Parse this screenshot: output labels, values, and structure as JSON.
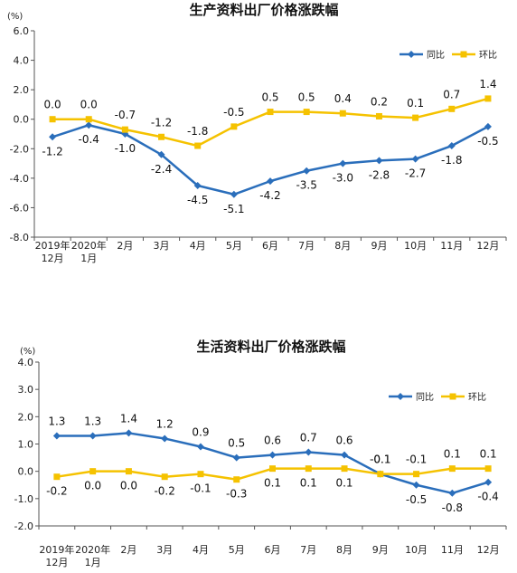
{
  "colors": {
    "tongbi": "#2a6ebb",
    "huanbi": "#f5c200",
    "axis": "#555555"
  },
  "chart_data": [
    {
      "type": "line",
      "title": "生产资料出厂价格涨跌幅",
      "unit": "(%)",
      "categories": [
        [
          "2019年",
          "12月"
        ],
        [
          "2020年",
          "1月"
        ],
        [
          "2月"
        ],
        [
          "3月"
        ],
        [
          "4月"
        ],
        [
          "5月"
        ],
        [
          "6月"
        ],
        [
          "7月"
        ],
        [
          "8月"
        ],
        [
          "9月"
        ],
        [
          "10月"
        ],
        [
          "11月"
        ],
        [
          "12月"
        ]
      ],
      "ylim": [
        -8,
        6
      ],
      "yticks": [
        "6.0",
        "4.0",
        "2.0",
        "0.0",
        "-2.0",
        "-4.0",
        "-6.0",
        "-8.0"
      ],
      "legend_position": "top-right",
      "grid": false,
      "series": [
        {
          "name": "同比",
          "values": [
            -1.2,
            -0.4,
            -1.0,
            -2.4,
            -4.5,
            -5.1,
            -4.2,
            -3.5,
            -3.0,
            -2.8,
            -2.7,
            -1.8,
            -0.5
          ],
          "labels": [
            "-1.2",
            "-0.4",
            "-1.0",
            "-2.4",
            "-4.5",
            "-5.1",
            "-4.2",
            "-3.5",
            "-3.0",
            "-2.8",
            "-2.7",
            "-1.8",
            "-0.5"
          ]
        },
        {
          "name": "环比",
          "values": [
            0.0,
            0.0,
            -0.7,
            -1.2,
            -1.8,
            -0.5,
            0.5,
            0.5,
            0.4,
            0.2,
            0.1,
            0.7,
            1.4
          ],
          "labels": [
            "0.0",
            "0.0",
            "-0.7",
            "-1.2",
            "-1.8",
            "-0.5",
            "0.5",
            "0.5",
            "0.4",
            "0.2",
            "0.1",
            "0.7",
            "1.4"
          ]
        }
      ]
    },
    {
      "type": "line",
      "title": "生活资料出厂价格涨跌幅",
      "unit": "(%)",
      "categories": [
        [
          "2019年",
          "12月"
        ],
        [
          "2020年",
          "1月"
        ],
        [
          "2月"
        ],
        [
          "3月"
        ],
        [
          "4月"
        ],
        [
          "5月"
        ],
        [
          "6月"
        ],
        [
          "7月"
        ],
        [
          "8月"
        ],
        [
          "9月"
        ],
        [
          "10月"
        ],
        [
          "11月"
        ],
        [
          "12月"
        ]
      ],
      "ylim": [
        -2,
        4
      ],
      "yticks": [
        "4.0",
        "3.0",
        "2.0",
        "1.0",
        "0.0",
        "-1.0",
        "-2.0"
      ],
      "legend_position": "top-right",
      "grid": false,
      "series": [
        {
          "name": "同比",
          "values": [
            1.3,
            1.3,
            1.4,
            1.2,
            0.9,
            0.5,
            0.6,
            0.7,
            0.6,
            -0.1,
            -0.5,
            -0.8,
            -0.4
          ],
          "labels": [
            "1.3",
            "1.3",
            "1.4",
            "1.2",
            "0.9",
            "0.5",
            "0.6",
            "0.7",
            "0.6",
            "-0.1",
            "-0.5",
            "-0.8",
            "-0.4"
          ]
        },
        {
          "name": "环比",
          "values": [
            -0.2,
            0.0,
            0.0,
            -0.2,
            -0.1,
            -0.3,
            0.1,
            0.1,
            0.1,
            -0.1,
            -0.1,
            0.1,
            0.1
          ],
          "labels": [
            "-0.2",
            "0.0",
            "0.0",
            "-0.2",
            "-0.1",
            "-0.3",
            "0.1",
            "0.1",
            "0.1",
            "-0.1",
            "-0.1",
            "0.1",
            "0.1"
          ]
        }
      ]
    }
  ]
}
